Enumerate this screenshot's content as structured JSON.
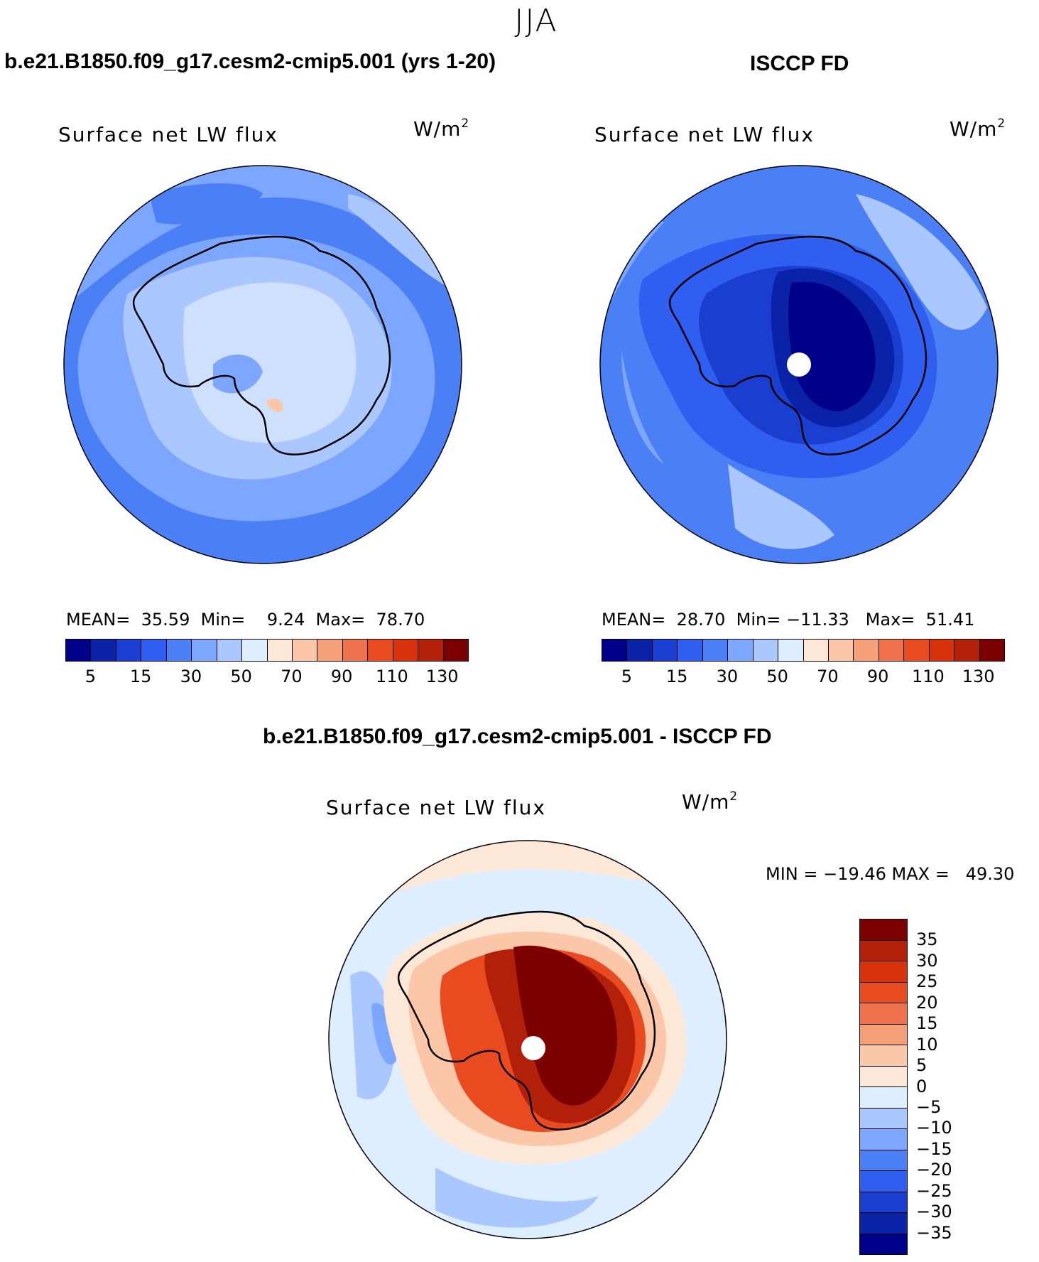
{
  "season": "JJA",
  "panels": [
    {
      "heading": "b.e21.B1850.f09_g17.cesm2-cmip5.001 (yrs 1-20)",
      "title": "Surface net LW flux",
      "units": "W/m",
      "units_exp": "2",
      "stats": {
        "mean_label": "MEAN=",
        "mean": "35.59",
        "min_label": "Min=",
        "min": "9.24",
        "max_label": "Max=",
        "max": "78.70"
      }
    },
    {
      "heading": "ISCCP FD",
      "title": "Surface net LW flux",
      "units": "W/m",
      "units_exp": "2",
      "stats": {
        "mean_label": "MEAN=",
        "mean": "28.70",
        "min_label": "Min=",
        "min": "−11.33",
        "max_label": "Max=",
        "max": "51.41"
      }
    }
  ],
  "diff_panel": {
    "heading": "b.e21.B1850.f09_g17.cesm2-cmip5.001 - ISCCP FD",
    "title": "Surface net LW flux",
    "units": "W/m",
    "units_exp": "2",
    "minmax": "MIN = −19.46 MAX =   49.30"
  },
  "colors": {
    "abs_scale": [
      "#00008b",
      "#0a22a8",
      "#1a3fd0",
      "#2f5ef0",
      "#4a7ff5",
      "#7da7ff",
      "#aac8ff",
      "#dceeff",
      "#fde7d6",
      "#fbc7a8",
      "#f6a07a",
      "#f0724c",
      "#e94a20",
      "#d8320c",
      "#b2200a",
      "#7c0000"
    ],
    "diff_scale_top_to_bottom": [
      "#7c0000",
      "#b2200a",
      "#d8320c",
      "#e94a20",
      "#f0724c",
      "#f6a07a",
      "#fbc7a8",
      "#fde7d6",
      "#dceeff",
      "#aac8ff",
      "#7da7ff",
      "#4a7ff5",
      "#2f5ef0",
      "#1a3fd0",
      "#0a22a8",
      "#00008b"
    ]
  },
  "chart_data": [
    {
      "type": "heatmap",
      "projection": "south polar stereographic",
      "title": "Surface net LW flux",
      "units": "W/m2",
      "stats": {
        "mean": 35.59,
        "min": 9.24,
        "max": 78.7
      },
      "colorbar": {
        "orientation": "horizontal",
        "tick_labels": [
          "5",
          "15",
          "30",
          "50",
          "70",
          "90",
          "110",
          "130"
        ]
      }
    },
    {
      "type": "heatmap",
      "projection": "south polar stereographic",
      "title": "Surface net LW flux",
      "units": "W/m2",
      "stats": {
        "mean": 28.7,
        "min": -11.33,
        "max": 51.41
      },
      "colorbar": {
        "orientation": "horizontal",
        "tick_labels": [
          "5",
          "15",
          "30",
          "50",
          "70",
          "90",
          "110",
          "130"
        ]
      }
    },
    {
      "type": "heatmap",
      "projection": "south polar stereographic",
      "title": "Surface net LW flux",
      "units": "W/m2",
      "stats": {
        "min": -19.46,
        "max": 49.3
      },
      "colorbar": {
        "orientation": "vertical",
        "tick_labels": [
          "35",
          "30",
          "25",
          "20",
          "15",
          "10",
          "5",
          "0",
          "−5",
          "−10",
          "−15",
          "−20",
          "−25",
          "−30",
          "−35"
        ]
      }
    }
  ]
}
